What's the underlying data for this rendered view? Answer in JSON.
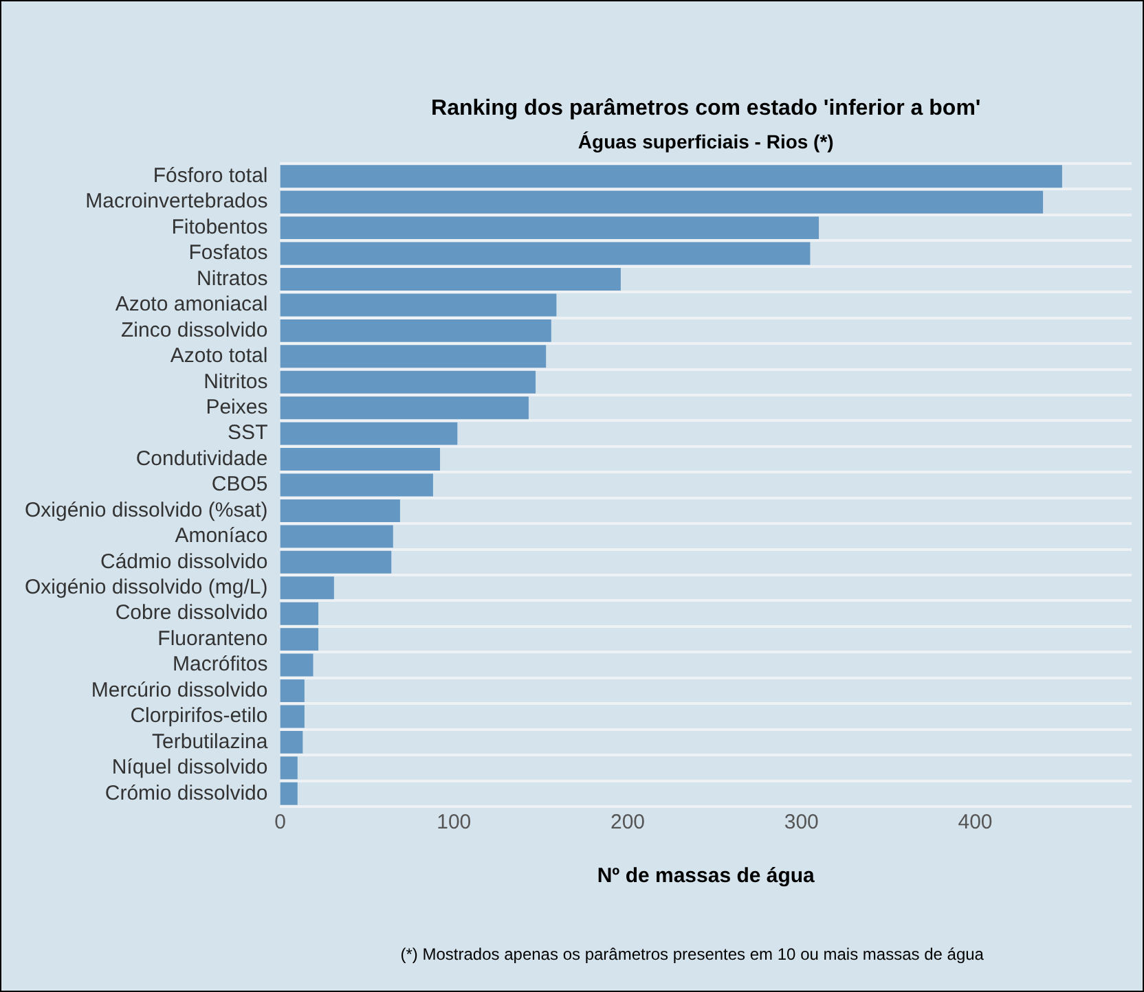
{
  "chart_data": {
    "type": "bar",
    "orientation": "horizontal",
    "title": "Ranking dos parâmetros com estado 'inferior a bom'",
    "subtitle": "Águas superficiais - Rios (*)",
    "xlabel": "Nº de massas de água",
    "categories": [
      "Fósforo total",
      "Macroinvertebrados",
      "Fitobentos",
      "Fosfatos",
      "Nitratos",
      "Azoto amoniacal",
      "Zinco dissolvido",
      "Azoto total",
      "Nitritos",
      "Peixes",
      "SST",
      "Condutividade",
      "CBO5",
      "Oxigénio dissolvido (%sat)",
      "Amoníaco",
      "Cádmio dissolvido",
      "Oxigénio dissolvido (mg/L)",
      "Cobre dissolvido",
      "Fluoranteno",
      "Macrófitos",
      "Mercúrio dissolvido",
      "Clorpirifos-etilo",
      "Terbutilazina",
      "Níquel dissolvido",
      "Crómio dissolvido"
    ],
    "values": [
      450,
      439,
      310,
      305,
      196,
      159,
      156,
      153,
      147,
      143,
      102,
      92,
      88,
      69,
      65,
      64,
      31,
      22,
      22,
      19,
      14,
      14,
      13,
      10,
      10
    ],
    "color": "#6497c1",
    "xlim": [
      0,
      490
    ],
    "xticks": [
      0,
      100,
      200,
      300,
      400
    ],
    "grid": "y",
    "legend": false,
    "annotations": [
      "(*) Mostrados apenas os parâmetros presentes em 10 ou mais massas de água"
    ]
  }
}
